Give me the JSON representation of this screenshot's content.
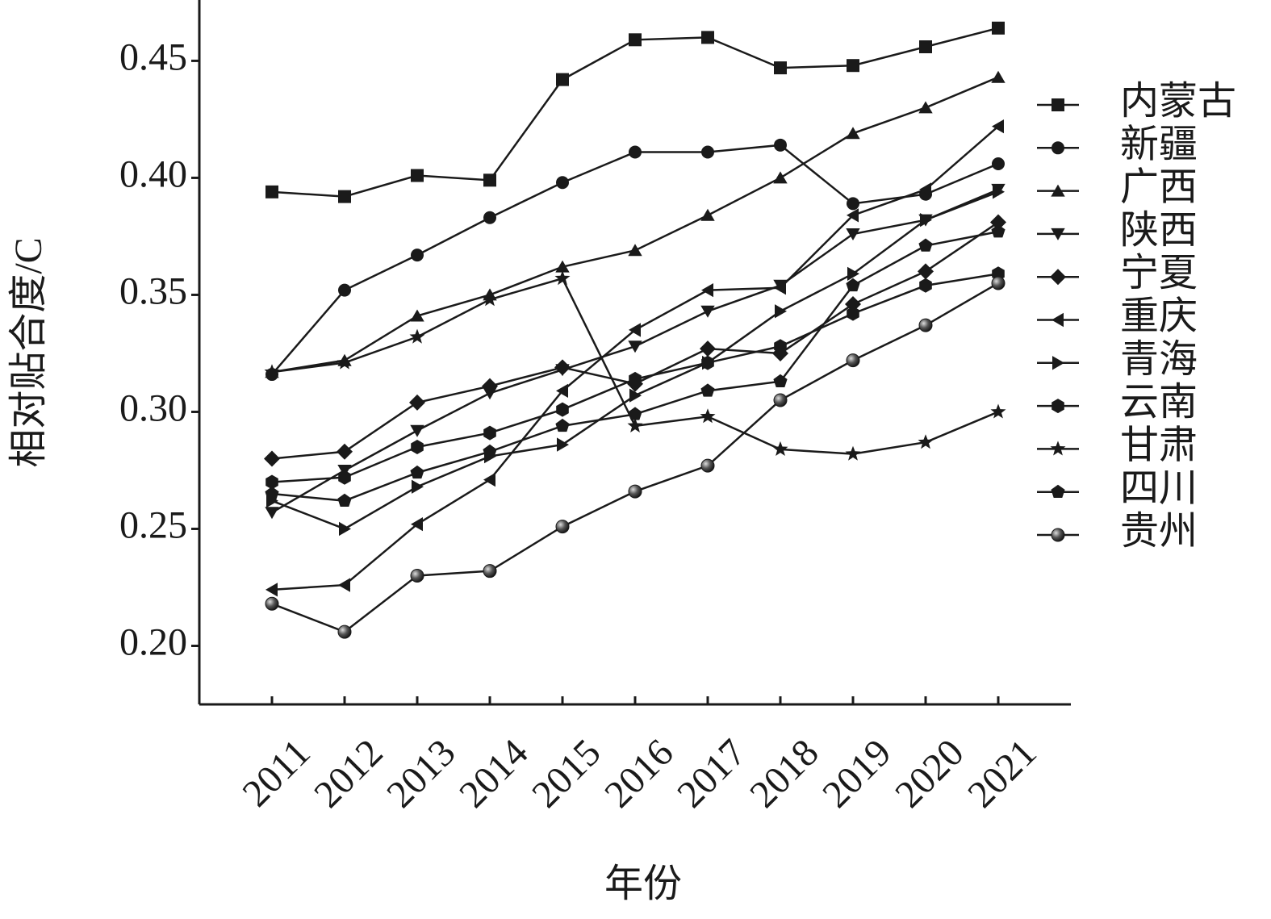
{
  "chart_data": {
    "type": "line",
    "x_label": "年份",
    "y_label": "相对贴合度/C",
    "categories": [
      "2011",
      "2012",
      "2013",
      "2014",
      "2015",
      "2016",
      "2017",
      "2018",
      "2019",
      "2020",
      "2021"
    ],
    "ylim": [
      0.175,
      0.476
    ],
    "yticks": [
      {
        "value": 0.2,
        "label": "0.20"
      },
      0.25,
      {
        "value": 0.3,
        "label": "0.30"
      },
      0.35,
      {
        "value": 0.4,
        "label": "0.40"
      },
      0.45
    ],
    "legend": "right",
    "series": [
      {
        "name": "内蒙古",
        "color": "#1a1a1a",
        "marker": "square",
        "values": [
          0.394,
          0.392,
          0.401,
          0.399,
          0.442,
          0.459,
          0.46,
          0.447,
          0.448,
          0.456,
          0.464
        ]
      },
      {
        "name": "新疆",
        "color": "#1a1a1a",
        "marker": "circle",
        "values": [
          0.316,
          0.352,
          0.367,
          0.383,
          0.398,
          0.411,
          0.411,
          0.414,
          0.389,
          0.393,
          0.406
        ]
      },
      {
        "name": "广西",
        "color": "#1a1a1a",
        "marker": "triangle-up",
        "values": [
          0.317,
          0.322,
          0.341,
          0.35,
          0.362,
          0.369,
          0.384,
          0.4,
          0.419,
          0.43,
          0.443
        ]
      },
      {
        "name": "陕西",
        "color": "#1a1a1a",
        "marker": "triangle-down",
        "values": [
          0.257,
          0.275,
          0.292,
          0.308,
          0.318,
          0.328,
          0.343,
          0.354,
          0.376,
          0.382,
          0.395
        ]
      },
      {
        "name": "宁夏",
        "color": "#1a1a1a",
        "marker": "diamond",
        "values": [
          0.28,
          0.283,
          0.304,
          0.311,
          0.319,
          0.312,
          0.327,
          0.325,
          0.346,
          0.36,
          0.381
        ]
      },
      {
        "name": "重庆",
        "color": "#1a1a1a",
        "marker": "triangle-left",
        "values": [
          0.224,
          0.226,
          0.252,
          0.271,
          0.309,
          0.335,
          0.352,
          0.353,
          0.384,
          0.395,
          0.422
        ]
      },
      {
        "name": "青海",
        "color": "#1a1a1a",
        "marker": "triangle-right",
        "values": [
          0.262,
          0.25,
          0.268,
          0.281,
          0.286,
          0.307,
          0.321,
          0.343,
          0.359,
          0.382,
          0.394
        ]
      },
      {
        "name": "云南",
        "color": "#1a1a1a",
        "marker": "hexagon",
        "values": [
          0.27,
          0.272,
          0.285,
          0.291,
          0.301,
          0.314,
          0.321,
          0.328,
          0.342,
          0.354,
          0.359
        ]
      },
      {
        "name": "甘肃",
        "color": "#1a1a1a",
        "marker": "star",
        "values": [
          0.317,
          0.321,
          0.332,
          0.348,
          0.357,
          0.294,
          0.298,
          0.284,
          0.282,
          0.287,
          0.3
        ]
      },
      {
        "name": "四川",
        "color": "#1a1a1a",
        "marker": "pentagon",
        "values": [
          0.265,
          0.262,
          0.274,
          0.283,
          0.294,
          0.299,
          0.309,
          0.313,
          0.354,
          0.371,
          0.377
        ]
      },
      {
        "name": "贵州",
        "color": "#1a1a1a",
        "marker": "sphere",
        "values": [
          0.218,
          0.206,
          0.23,
          0.232,
          0.251,
          0.266,
          0.277,
          0.305,
          0.322,
          0.337,
          0.355
        ]
      }
    ]
  }
}
